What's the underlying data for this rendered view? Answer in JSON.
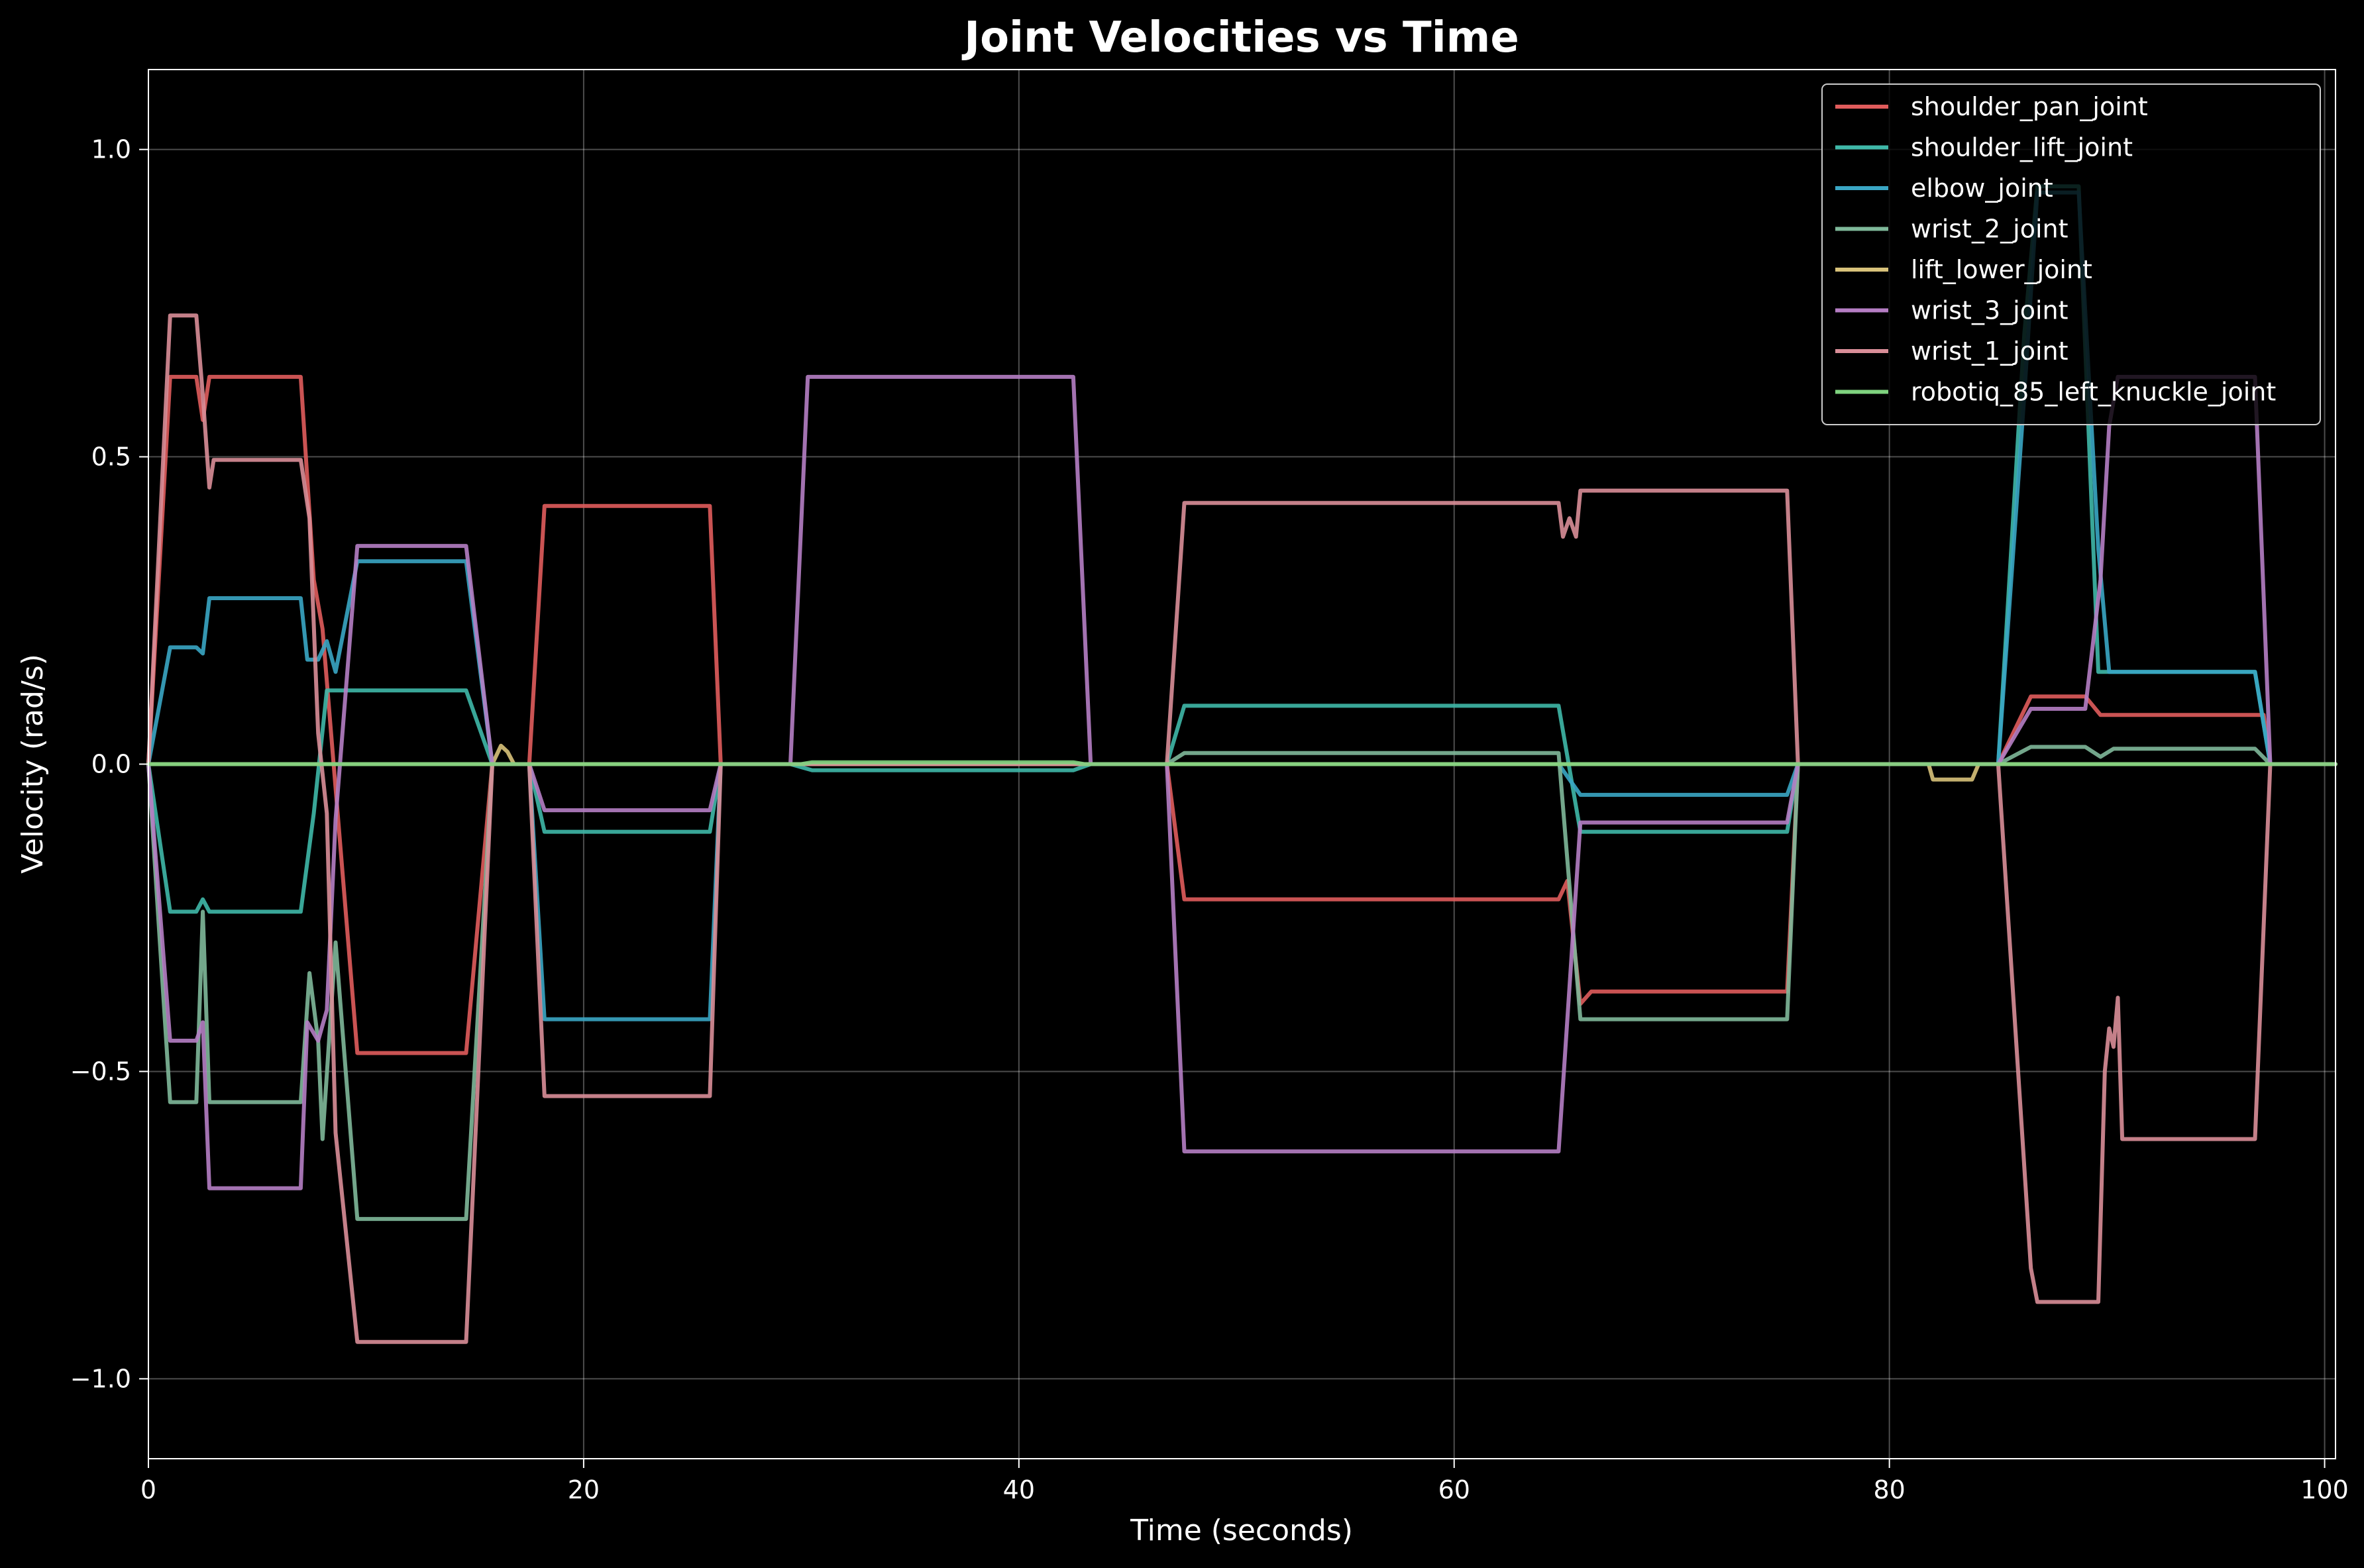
{
  "chart_data": {
    "type": "line",
    "title": "Joint Velocities vs Time",
    "xlabel": "Time (seconds)",
    "ylabel": "Velocity (rad/s)",
    "xlim": [
      0,
      100.5
    ],
    "ylim": [
      -1.13,
      1.13
    ],
    "xticks": [
      0,
      20,
      40,
      60,
      80,
      100
    ],
    "xtick_labels": [
      "0",
      "20",
      "40",
      "60",
      "80",
      "100"
    ],
    "yticks": [
      -1.0,
      -0.5,
      0.0,
      0.5,
      1.0
    ],
    "ytick_labels": [
      "−1.0",
      "−0.5",
      "0.0",
      "0.5",
      "1.0"
    ],
    "grid": true,
    "legend": "top-right",
    "series": [
      {
        "name": "shoulder_pan_joint",
        "color": "#e05c5c",
        "points": [
          [
            0,
            0
          ],
          [
            1,
            0.63
          ],
          [
            2.2,
            0.63
          ],
          [
            2.5,
            0.56
          ],
          [
            2.8,
            0.63
          ],
          [
            7,
            0.63
          ],
          [
            7.6,
            0.3
          ],
          [
            8,
            0.22
          ],
          [
            9.6,
            -0.47
          ],
          [
            14.6,
            -0.47
          ],
          [
            15.8,
            0
          ],
          [
            17.5,
            0
          ],
          [
            18.2,
            0.42
          ],
          [
            25.8,
            0.42
          ],
          [
            26.3,
            0
          ],
          [
            46.8,
            0
          ],
          [
            47.6,
            -0.22
          ],
          [
            64.8,
            -0.22
          ],
          [
            65.2,
            -0.19
          ],
          [
            65.8,
            -0.39
          ],
          [
            66.3,
            -0.37
          ],
          [
            75.3,
            -0.37
          ],
          [
            75.8,
            0
          ],
          [
            85,
            0
          ],
          [
            86.5,
            0.11
          ],
          [
            89,
            0.11
          ],
          [
            89.7,
            0.08
          ],
          [
            97.2,
            0.08
          ],
          [
            97.5,
            0
          ],
          [
            100.5,
            0
          ]
        ]
      },
      {
        "name": "shoulder_lift_joint",
        "color": "#3fb8a8",
        "points": [
          [
            0,
            0
          ],
          [
            1,
            -0.24
          ],
          [
            2.2,
            -0.24
          ],
          [
            2.5,
            -0.22
          ],
          [
            2.8,
            -0.24
          ],
          [
            7,
            -0.24
          ],
          [
            7.6,
            -0.08
          ],
          [
            8.2,
            0.12
          ],
          [
            9.6,
            0.12
          ],
          [
            14.6,
            0.12
          ],
          [
            15.8,
            0
          ],
          [
            17.5,
            0
          ],
          [
            18.2,
            -0.11
          ],
          [
            25.8,
            -0.11
          ],
          [
            26.3,
            0
          ],
          [
            29.5,
            0
          ],
          [
            30.5,
            -0.01
          ],
          [
            42.5,
            -0.01
          ],
          [
            43.3,
            0
          ],
          [
            46.8,
            0
          ],
          [
            47.6,
            0.095
          ],
          [
            64.8,
            0.095
          ],
          [
            65.8,
            -0.11
          ],
          [
            75.3,
            -0.11
          ],
          [
            75.8,
            0
          ],
          [
            85,
            0
          ],
          [
            86.2,
            0.7
          ],
          [
            86.8,
            0.94
          ],
          [
            88.7,
            0.94
          ],
          [
            89.6,
            0.15
          ],
          [
            90.1,
            0.15
          ],
          [
            96.8,
            0.15
          ],
          [
            97.5,
            0
          ],
          [
            100.5,
            0
          ]
        ]
      },
      {
        "name": "elbow_joint",
        "color": "#3aa6c4",
        "points": [
          [
            0,
            0
          ],
          [
            1,
            0.19
          ],
          [
            2.2,
            0.19
          ],
          [
            2.5,
            0.18
          ],
          [
            2.8,
            0.27
          ],
          [
            7,
            0.27
          ],
          [
            7.3,
            0.17
          ],
          [
            7.8,
            0.17
          ],
          [
            8.2,
            0.2
          ],
          [
            8.6,
            0.15
          ],
          [
            9.6,
            0.33
          ],
          [
            14.6,
            0.33
          ],
          [
            15.8,
            0
          ],
          [
            17.5,
            0
          ],
          [
            18.2,
            -0.415
          ],
          [
            25.8,
            -0.415
          ],
          [
            26.3,
            0
          ],
          [
            46.8,
            0
          ],
          [
            47.6,
            0
          ],
          [
            64.8,
            0
          ],
          [
            65.8,
            -0.05
          ],
          [
            75.3,
            -0.05
          ],
          [
            75.8,
            0
          ],
          [
            85,
            0
          ],
          [
            86.2,
            0.6
          ],
          [
            86.8,
            0.93
          ],
          [
            88.7,
            0.93
          ],
          [
            89.6,
            0.35
          ],
          [
            90.1,
            0.15
          ],
          [
            96.8,
            0.15
          ],
          [
            97.5,
            0
          ],
          [
            100.5,
            0
          ]
        ]
      },
      {
        "name": "wrist_2_joint",
        "color": "#7fb89a",
        "points": [
          [
            0,
            0
          ],
          [
            1,
            -0.55
          ],
          [
            2.2,
            -0.55
          ],
          [
            2.5,
            -0.24
          ],
          [
            2.8,
            -0.55
          ],
          [
            7,
            -0.55
          ],
          [
            7.4,
            -0.34
          ],
          [
            7.8,
            -0.45
          ],
          [
            8.0,
            -0.61
          ],
          [
            8.6,
            -0.29
          ],
          [
            9.6,
            -0.74
          ],
          [
            14.6,
            -0.74
          ],
          [
            15.8,
            0
          ],
          [
            17.5,
            0
          ],
          [
            18.2,
            0
          ],
          [
            25.8,
            0
          ],
          [
            26.3,
            0
          ],
          [
            46.8,
            0
          ],
          [
            47.6,
            0.018
          ],
          [
            64.8,
            0.018
          ],
          [
            65.8,
            -0.415
          ],
          [
            75.3,
            -0.415
          ],
          [
            75.8,
            0
          ],
          [
            85,
            0
          ],
          [
            86.5,
            0.028
          ],
          [
            89,
            0.028
          ],
          [
            89.7,
            0.012
          ],
          [
            90.3,
            0.025
          ],
          [
            96.8,
            0.025
          ],
          [
            97.5,
            0
          ],
          [
            100.5,
            0
          ]
        ]
      },
      {
        "name": "lift_lower_joint",
        "color": "#d8c27a",
        "points": [
          [
            0,
            0
          ],
          [
            15.8,
            0
          ],
          [
            16.2,
            0.03
          ],
          [
            16.5,
            0.02
          ],
          [
            16.8,
            0
          ],
          [
            81.8,
            0
          ],
          [
            82,
            -0.025
          ],
          [
            83.8,
            -0.025
          ],
          [
            84.1,
            0
          ],
          [
            100.5,
            0
          ]
        ]
      },
      {
        "name": "wrist_3_joint",
        "color": "#b57ec4",
        "points": [
          [
            0,
            0
          ],
          [
            1,
            -0.45
          ],
          [
            2.2,
            -0.45
          ],
          [
            2.5,
            -0.42
          ],
          [
            2.8,
            -0.69
          ],
          [
            7,
            -0.69
          ],
          [
            7.3,
            -0.42
          ],
          [
            7.8,
            -0.45
          ],
          [
            8.2,
            -0.4
          ],
          [
            8.6,
            -0.09
          ],
          [
            9.6,
            0.355
          ],
          [
            14.6,
            0.355
          ],
          [
            15.8,
            0
          ],
          [
            17.5,
            0
          ],
          [
            18.2,
            -0.075
          ],
          [
            25.8,
            -0.075
          ],
          [
            26.3,
            0
          ],
          [
            29.5,
            0
          ],
          [
            30.3,
            0.63
          ],
          [
            42.5,
            0.63
          ],
          [
            43.3,
            0
          ],
          [
            46.8,
            0
          ],
          [
            47.6,
            -0.63
          ],
          [
            64.8,
            -0.63
          ],
          [
            65.8,
            -0.095
          ],
          [
            75.3,
            -0.095
          ],
          [
            75.8,
            0
          ],
          [
            85,
            0
          ],
          [
            86.5,
            0.09
          ],
          [
            89,
            0.09
          ],
          [
            89.7,
            0.3
          ],
          [
            90.1,
            0.55
          ],
          [
            90.5,
            0.63
          ],
          [
            96.8,
            0.63
          ],
          [
            97.5,
            0
          ],
          [
            100.5,
            0
          ]
        ]
      },
      {
        "name": "wrist_1_joint",
        "color": "#d98e98",
        "points": [
          [
            0,
            0
          ],
          [
            1,
            0.73
          ],
          [
            2.2,
            0.73
          ],
          [
            2.5,
            0.6
          ],
          [
            2.8,
            0.45
          ],
          [
            3,
            0.495
          ],
          [
            7,
            0.495
          ],
          [
            7.4,
            0.4
          ],
          [
            7.8,
            0.05
          ],
          [
            8.2,
            -0.08
          ],
          [
            8.6,
            -0.6
          ],
          [
            9.6,
            -0.94
          ],
          [
            14.6,
            -0.94
          ],
          [
            15.8,
            0
          ],
          [
            17.5,
            0
          ],
          [
            18.2,
            -0.54
          ],
          [
            25.8,
            -0.54
          ],
          [
            26.3,
            0
          ],
          [
            46.8,
            0
          ],
          [
            47.6,
            0.425
          ],
          [
            64.8,
            0.425
          ],
          [
            65,
            0.37
          ],
          [
            65.3,
            0.4
          ],
          [
            65.6,
            0.37
          ],
          [
            65.8,
            0.445
          ],
          [
            75.3,
            0.445
          ],
          [
            75.8,
            0
          ],
          [
            85,
            0
          ],
          [
            86.5,
            -0.82
          ],
          [
            86.8,
            -0.875
          ],
          [
            89.6,
            -0.875
          ],
          [
            89.9,
            -0.5
          ],
          [
            90.1,
            -0.43
          ],
          [
            90.3,
            -0.46
          ],
          [
            90.5,
            -0.38
          ],
          [
            90.7,
            -0.61
          ],
          [
            96.8,
            -0.61
          ],
          [
            97.5,
            0
          ],
          [
            100.5,
            0
          ]
        ]
      },
      {
        "name": "robotiq_85_left_knuckle_joint",
        "color": "#7fd37f",
        "points": [
          [
            0,
            0
          ],
          [
            30,
            0
          ],
          [
            30.5,
            0.003
          ],
          [
            42.5,
            0.003
          ],
          [
            43,
            0
          ],
          [
            100.5,
            0
          ]
        ]
      }
    ]
  }
}
